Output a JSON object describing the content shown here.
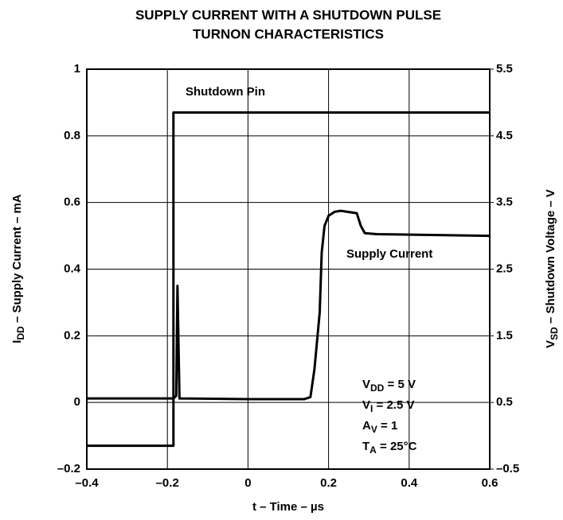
{
  "chart_data": {
    "type": "line",
    "title": [
      "SUPPLY CURRENT WITH A SHUTDOWN PULSE",
      "TURNON CHARACTERISTICS"
    ],
    "xlabel": "t – Time – µs",
    "ylabel": {
      "main": "I",
      "sub": "DD",
      "rest": " – Supply Current – mA"
    },
    "y2label": {
      "main": "V",
      "sub": "SD",
      "rest": " – Shutdown Voltage – V"
    },
    "xlim": [
      -0.4,
      0.6
    ],
    "xticks": [
      {
        "value": -0.4,
        "label": "–0.4"
      },
      {
        "value": -0.2,
        "label": "–0.2"
      },
      0,
      0.2,
      0.4,
      0.6
    ],
    "ylim": [
      -0.2,
      1
    ],
    "yticks": [
      {
        "value": -0.2,
        "label": "–0.2"
      },
      0,
      0.2,
      0.4,
      0.6,
      0.8,
      1
    ],
    "y2lim": [
      -0.5,
      5.5
    ],
    "y2ticks": [
      {
        "value": -0.5,
        "label": "–0.5"
      },
      0.5,
      1.5,
      2.5,
      3.5,
      4.5,
      5.5
    ],
    "grid": true,
    "series": [
      {
        "name": "Shutdown Pin",
        "color": "#000000",
        "axis": "y2",
        "x": [
          -0.4,
          -0.185,
          -0.185,
          0.6
        ],
        "values": [
          -0.15,
          -0.15,
          4.85,
          4.85
        ]
      },
      {
        "name": "Supply Current",
        "color": "#000000",
        "x": [
          -0.4,
          -0.185,
          -0.178,
          -0.175,
          -0.17,
          0.0,
          0.14,
          0.155,
          0.165,
          0.178,
          0.183,
          0.19,
          0.2,
          0.215,
          0.23,
          0.27,
          0.28,
          0.29,
          0.32,
          0.6
        ],
        "values": [
          0.012,
          0.012,
          0.02,
          0.35,
          0.012,
          0.01,
          0.01,
          0.016,
          0.1,
          0.27,
          0.45,
          0.53,
          0.56,
          0.572,
          0.575,
          0.568,
          0.53,
          0.508,
          0.505,
          0.5
        ]
      }
    ],
    "conditions": [
      {
        "main": "V",
        "sub": "DD",
        "rest": " = 5 V"
      },
      {
        "main": "V",
        "sub": "I",
        "rest": " = 2.5 V"
      },
      {
        "main": "A",
        "sub": "V",
        "rest": " = 1"
      },
      {
        "main": "T",
        "sub": "A",
        "rest": " = 25°C"
      }
    ]
  }
}
